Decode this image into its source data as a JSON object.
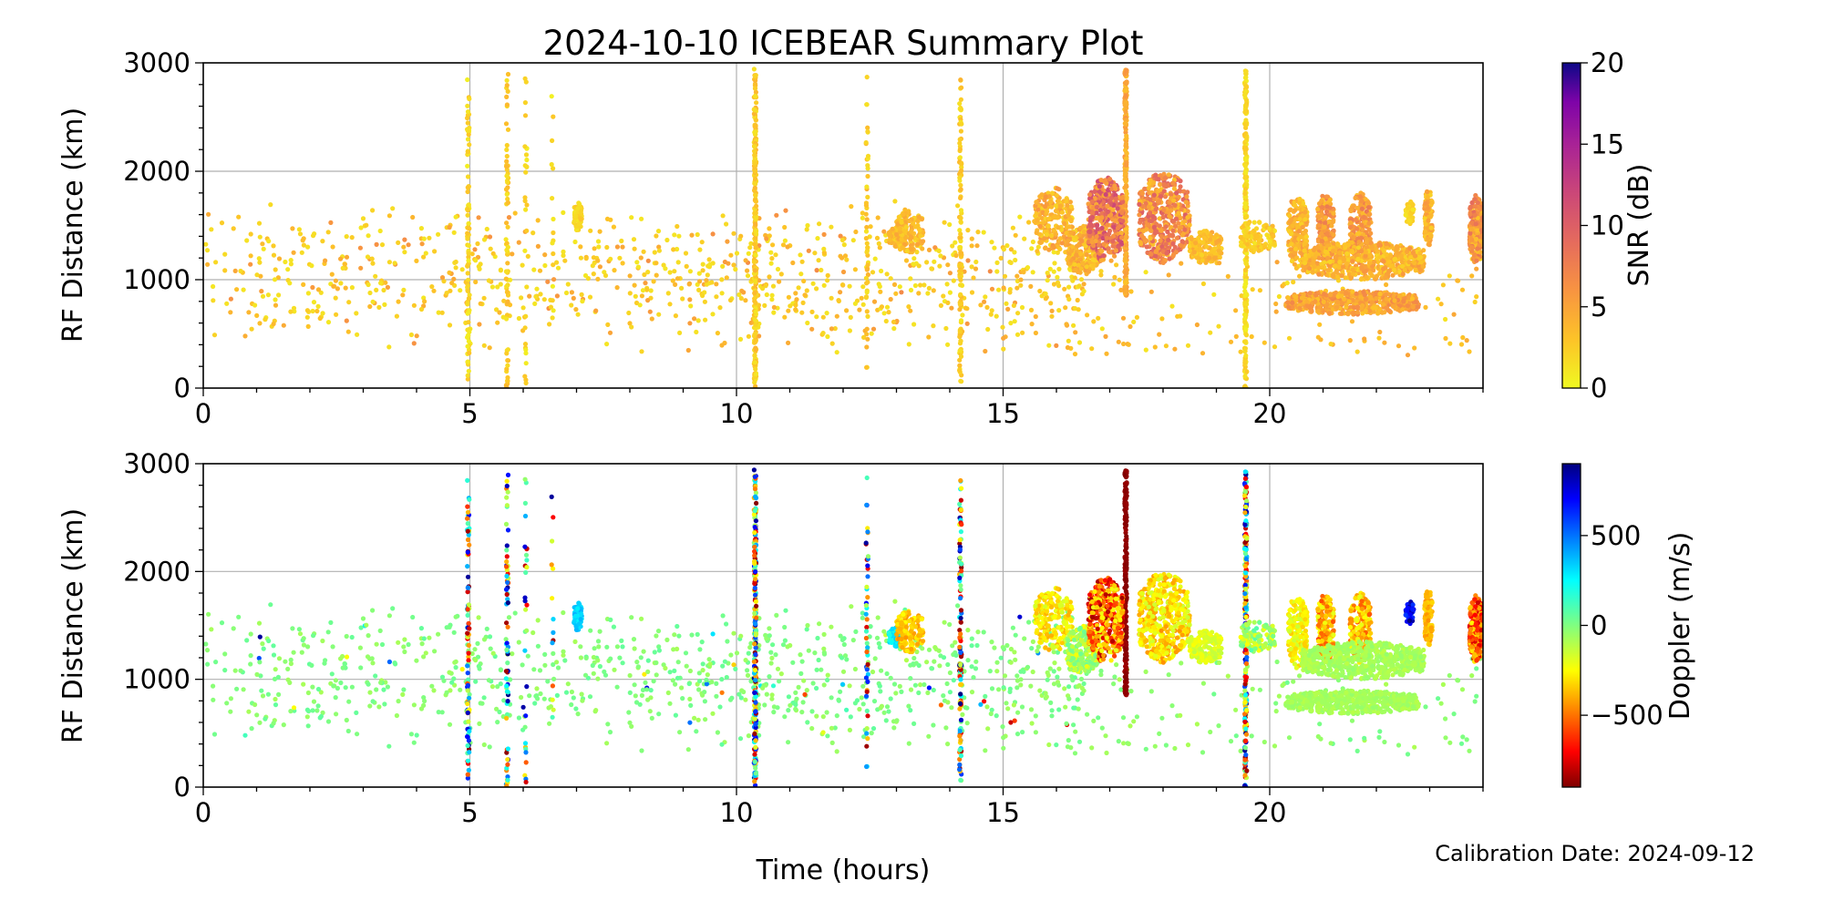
{
  "chart_data": {
    "type": "scatter",
    "title": "2024-10-10 ICEBEAR Summary Plot",
    "xlabel": "Time (hours)",
    "footer": "Calibration Date: 2024-09-12",
    "xlim": [
      0,
      24
    ],
    "xticks": [
      0,
      5,
      10,
      15,
      20
    ],
    "grid": true,
    "panels": [
      {
        "name": "snr",
        "ylabel": "RF Distance (km)",
        "ylim": [
          0,
          3000
        ],
        "yticks": [
          0,
          1000,
          2000,
          3000
        ],
        "color_by": "snr",
        "colorbar": {
          "label": "SNR (dB)",
          "range": [
            0,
            20
          ],
          "ticks": [
            0,
            5,
            10,
            15,
            20
          ],
          "colormap": "plasma_r"
        }
      },
      {
        "name": "doppler",
        "ylabel": "RF Distance (km)",
        "ylim": [
          0,
          3000
        ],
        "yticks": [
          0,
          1000,
          2000,
          3000
        ],
        "color_by": "doppler",
        "colorbar": {
          "label": "Doppler (m/s)",
          "range": [
            -900,
            900
          ],
          "ticks": [
            -500,
            0,
            500
          ],
          "tick_labels": [
            "−500",
            "0",
            "500"
          ],
          "colormap": "jet"
        }
      }
    ],
    "background_scatter": {
      "count": 900,
      "time_range": [
        0,
        16.5
      ],
      "range_km": [
        300,
        1750
      ],
      "snr": [
        1,
        7
      ],
      "doppler": [
        -80,
        60
      ],
      "late_count": 160,
      "late_time_range": [
        15,
        24
      ],
      "late_range_km": [
        300,
        1200
      ]
    },
    "vertical_streaks": [
      {
        "t": 4.97,
        "r": [
          0,
          2850
        ],
        "n": 90,
        "snr": [
          0.5,
          3
        ],
        "doppler": "mixed"
      },
      {
        "t": 5.7,
        "r": [
          0,
          2900
        ],
        "n": 70,
        "snr": [
          1,
          4
        ],
        "doppler": "mixed"
      },
      {
        "t": 6.05,
        "r": [
          0,
          2900
        ],
        "n": 30,
        "snr": [
          0.5,
          3
        ],
        "doppler": "mixed"
      },
      {
        "t": 6.55,
        "r": [
          400,
          2700
        ],
        "n": 15,
        "snr": [
          0.5,
          3
        ],
        "doppler": "mixed"
      },
      {
        "t": 10.35,
        "r": [
          0,
          2950
        ],
        "n": 260,
        "snr": [
          1,
          4
        ],
        "doppler": "mixed"
      },
      {
        "t": 12.45,
        "r": [
          0,
          2930
        ],
        "n": 50,
        "snr": [
          1,
          4
        ],
        "doppler": "mixed"
      },
      {
        "t": 14.2,
        "r": [
          0,
          2930
        ],
        "n": 120,
        "snr": [
          1,
          4
        ],
        "doppler": "mixed"
      },
      {
        "t": 17.3,
        "r": [
          850,
          2950
        ],
        "n": 220,
        "snr": [
          3,
          6
        ],
        "doppler": [
          -900,
          -850
        ]
      },
      {
        "t": 19.55,
        "r": [
          0,
          2930
        ],
        "n": 260,
        "snr": [
          0.5,
          3
        ],
        "doppler": "mixed"
      }
    ],
    "clusters": [
      {
        "t": [
          6.95,
          7.1
        ],
        "r": [
          1450,
          1720
        ],
        "n": 60,
        "snr": [
          1,
          3
        ],
        "doppler": [
          250,
          400
        ]
      },
      {
        "t": [
          12.85,
          13.1
        ],
        "r": [
          1300,
          1480
        ],
        "n": 60,
        "snr": [
          2,
          5
        ],
        "doppler": [
          150,
          350
        ]
      },
      {
        "t": [
          13.0,
          13.5
        ],
        "r": [
          1250,
          1650
        ],
        "n": 140,
        "snr": [
          2,
          5
        ],
        "doppler": [
          -450,
          -250
        ]
      },
      {
        "t": [
          15.6,
          16.3
        ],
        "r": [
          1250,
          1850
        ],
        "n": 200,
        "snr": [
          2,
          6
        ],
        "doppler": [
          -400,
          -150
        ]
      },
      {
        "t": [
          16.2,
          16.8
        ],
        "r": [
          1050,
          1500
        ],
        "n": 220,
        "snr": [
          2,
          6
        ],
        "doppler": [
          -250,
          50
        ]
      },
      {
        "t": [
          16.6,
          17.25
        ],
        "r": [
          1150,
          1950
        ],
        "n": 450,
        "snr": [
          4,
          12
        ],
        "doppler": [
          -850,
          -200
        ]
      },
      {
        "t": [
          17.55,
          18.5
        ],
        "r": [
          1150,
          2000
        ],
        "n": 450,
        "snr": [
          3,
          10
        ],
        "doppler": [
          -450,
          -150
        ]
      },
      {
        "t": [
          18.5,
          19.1
        ],
        "r": [
          1150,
          1450
        ],
        "n": 180,
        "snr": [
          2,
          5
        ],
        "doppler": [
          -250,
          -120
        ]
      },
      {
        "t": [
          19.45,
          20.1
        ],
        "r": [
          1250,
          1550
        ],
        "n": 120,
        "snr": [
          1,
          4
        ],
        "doppler": [
          -250,
          100
        ]
      },
      {
        "t": [
          20.35,
          20.7
        ],
        "r": [
          1100,
          1800
        ],
        "n": 200,
        "snr": [
          2,
          6
        ],
        "doppler": [
          -350,
          -150
        ]
      },
      {
        "t": [
          20.9,
          21.2
        ],
        "r": [
          1150,
          1800
        ],
        "n": 180,
        "snr": [
          3,
          8
        ],
        "doppler": [
          -600,
          -200
        ]
      },
      {
        "t": [
          21.5,
          21.9
        ],
        "r": [
          1150,
          1800
        ],
        "n": 180,
        "snr": [
          3,
          8
        ],
        "doppler": [
          -550,
          -200
        ]
      },
      {
        "t": [
          20.6,
          22.9
        ],
        "r": [
          1000,
          1350
        ],
        "n": 600,
        "snr": [
          2,
          6
        ],
        "doppler": [
          -120,
          -40
        ]
      },
      {
        "t": [
          20.3,
          22.8
        ],
        "r": [
          680,
          900
        ],
        "n": 550,
        "snr": [
          3,
          7
        ],
        "doppler": [
          -110,
          -40
        ]
      },
      {
        "t": [
          22.55,
          22.7
        ],
        "r": [
          1500,
          1750
        ],
        "n": 40,
        "snr": [
          1,
          3
        ],
        "doppler": [
          600,
          900
        ]
      },
      {
        "t": [
          22.9,
          23.05
        ],
        "r": [
          1300,
          1850
        ],
        "n": 100,
        "snr": [
          2,
          6
        ],
        "doppler": [
          -450,
          -300
        ]
      },
      {
        "t": [
          23.75,
          24.0
        ],
        "r": [
          1150,
          1800
        ],
        "n": 220,
        "snr": [
          3,
          9
        ],
        "doppler": [
          -800,
          -250
        ]
      }
    ]
  }
}
